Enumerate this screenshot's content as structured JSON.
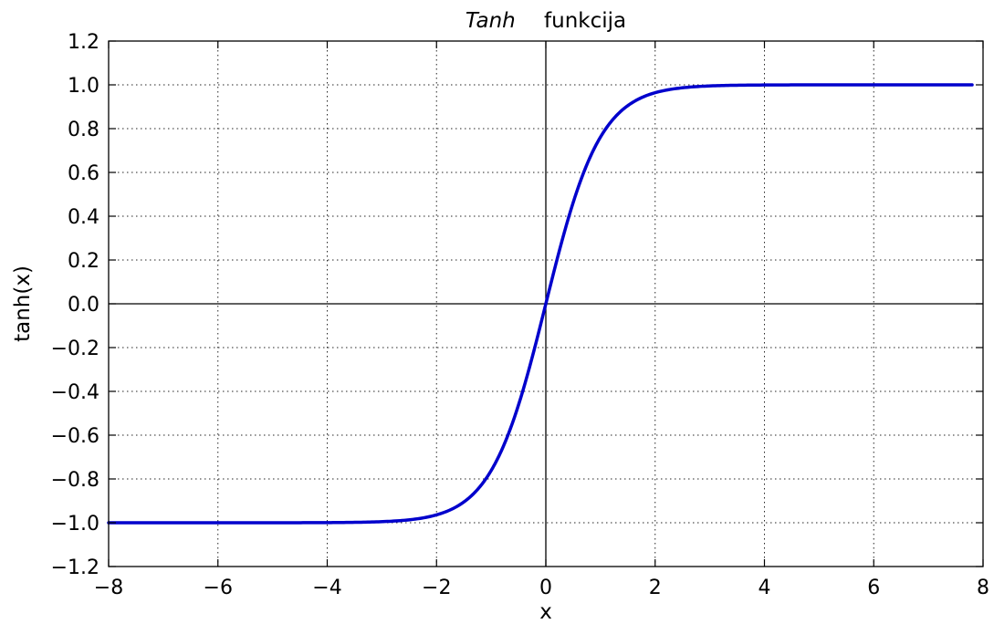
{
  "chart_data": {
    "type": "line",
    "title": {
      "italic_part": "Tanh",
      "normal_part": "funkcija"
    },
    "xlabel": "x",
    "ylabel": "tanh(x)",
    "xlim": [
      -8,
      8
    ],
    "ylim": [
      -1.2,
      1.2
    ],
    "grid": true,
    "zero_lines": true,
    "x_ticks": [
      -8,
      -6,
      -4,
      -2,
      0,
      2,
      4,
      6,
      8
    ],
    "x_tick_labels": [
      "−8",
      "−6",
      "−4",
      "−2",
      "0",
      "2",
      "4",
      "6",
      "8"
    ],
    "y_ticks": [
      1.2,
      1.0,
      0.8,
      0.6,
      0.4,
      0.2,
      0.0,
      -0.2,
      -0.4,
      -0.6,
      -0.8,
      -1.0,
      -1.2
    ],
    "y_tick_labels": [
      "1.2",
      "1.0",
      "0.8",
      "0.6",
      "0.4",
      "0.2",
      "0.0",
      "−0.2",
      "−0.4",
      "−0.6",
      "−0.8",
      "−1.0",
      "−1.2"
    ],
    "series": [
      {
        "function": "tanh",
        "color": "#0000cc",
        "x_range": [
          -8,
          7.8
        ],
        "x": [
          -8,
          -7,
          -6,
          -5,
          -4,
          -3.5,
          -3,
          -2.5,
          -2,
          -1.75,
          -1.5,
          -1.25,
          -1,
          -0.75,
          -0.5,
          -0.25,
          0,
          0.25,
          0.5,
          0.75,
          1,
          1.25,
          1.5,
          1.75,
          2,
          2.5,
          3,
          3.5,
          4,
          5,
          6,
          7,
          7.8
        ],
        "y": [
          -1.0,
          -1.0,
          -1.0,
          -0.9999,
          -0.9993,
          -0.9982,
          -0.9951,
          -0.9866,
          -0.964,
          -0.9414,
          -0.9051,
          -0.8483,
          -0.7616,
          -0.6351,
          -0.4621,
          -0.2449,
          0.0,
          0.2449,
          0.4621,
          0.6351,
          0.7616,
          0.8483,
          0.9051,
          0.9414,
          0.964,
          0.9866,
          0.9951,
          0.9982,
          0.9993,
          0.9999,
          1.0,
          1.0,
          1.0
        ]
      }
    ]
  }
}
